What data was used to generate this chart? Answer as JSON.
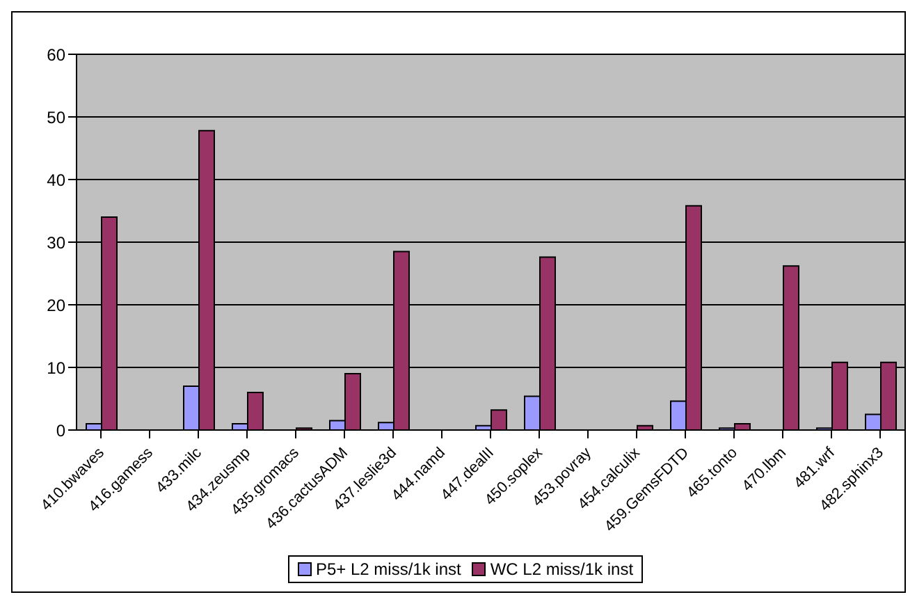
{
  "chart_data": {
    "type": "bar",
    "categories": [
      "410.bwaves",
      "416.gamess",
      "433.milc",
      "434.zeusmp",
      "435.gromacs",
      "436.cactusADM",
      "437.leslie3d",
      "444.namd",
      "447.dealII",
      "450.soplex",
      "453.povray",
      "454.calculix",
      "459.GemsFDTD",
      "465.tonto",
      "470.lbm",
      "481.wrf",
      "482.sphinx3"
    ],
    "series": [
      {
        "name": "P5+ L2 miss/1k inst",
        "color": "#9999ff",
        "values": [
          1,
          0,
          7,
          1,
          0,
          1.5,
          1.2,
          0,
          0.7,
          5.4,
          0,
          0,
          4.6,
          0.3,
          0,
          0.3,
          2.5
        ]
      },
      {
        "name": "WC L2 miss/1k inst",
        "color": "#993366",
        "values": [
          34,
          0,
          47.8,
          6,
          0.3,
          9,
          28.5,
          0,
          3.2,
          27.6,
          0,
          0.7,
          35.8,
          1,
          26.2,
          10.8,
          10.8
        ]
      }
    ],
    "ylim": [
      0,
      60
    ],
    "yticks": [
      0,
      10,
      20,
      30,
      40,
      50,
      60
    ],
    "grid": "y",
    "legend": "bottom"
  }
}
